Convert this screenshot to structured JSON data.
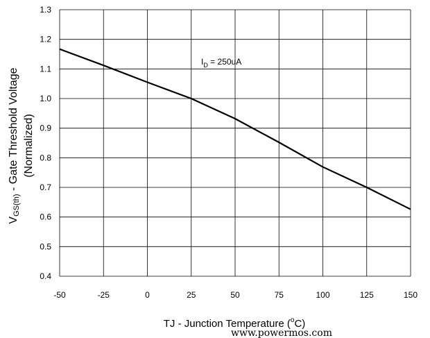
{
  "chart_data": {
    "type": "line",
    "xlabel_main": "TJ - Junction Temperature (",
    "xlabel_sup": "o",
    "xlabel_end": "C)",
    "ylabel_prefix": "V",
    "ylabel_sub": "GS(th)",
    "ylabel_rest": " - Gate Threshold Voltage",
    "ylabel_line2": "(Normalized)",
    "annotation_prefix": "I",
    "annotation_sub": "D",
    "annotation_rest": " = 250uA",
    "xlim": [
      -50,
      150
    ],
    "ylim": [
      0.4,
      1.3
    ],
    "x_ticks": [
      -50,
      -25,
      0,
      25,
      50,
      75,
      100,
      125,
      150
    ],
    "y_ticks": [
      0.4,
      0.5,
      0.6,
      0.7,
      0.8,
      0.9,
      1.0,
      1.1,
      1.2,
      1.3
    ],
    "x_tick_labels": [
      "-50",
      "-25",
      "0",
      "25",
      "50",
      "75",
      "100",
      "125",
      "150"
    ],
    "y_tick_labels": [
      "0.4",
      "0.5",
      "0.6",
      "0.7",
      "0.8",
      "0.9",
      "1.0",
      "1.1",
      "1.2",
      "1.3"
    ],
    "grid": true,
    "series": [
      {
        "x": [
          -50,
          -25,
          0,
          25,
          50,
          75,
          100,
          125,
          150
        ],
        "y": [
          1.167,
          1.112,
          1.055,
          1.0,
          0.932,
          0.852,
          0.769,
          0.7,
          0.626
        ],
        "color": "#000000"
      }
    ]
  },
  "watermark": "www.powermos.com"
}
